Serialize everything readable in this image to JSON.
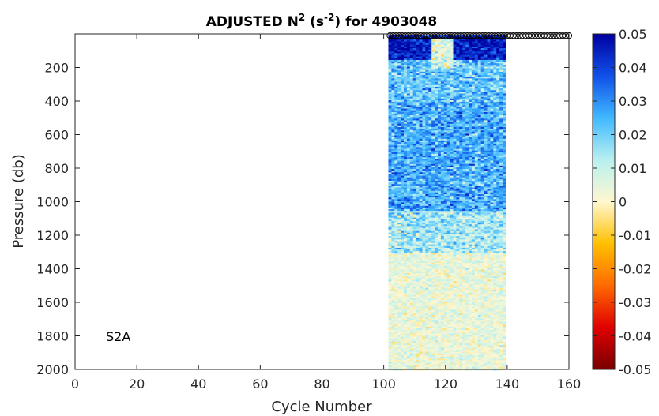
{
  "chart_data": {
    "type": "heatmap",
    "title": {
      "prefix": "ADJUSTED N",
      "sup1": "2",
      "mid": " (s",
      "sup2": "-2",
      "suffix": ") for 4903048"
    },
    "xlabel": "Cycle Number",
    "ylabel": "Pressure (db)",
    "xlim": [
      0,
      160
    ],
    "ylim": [
      2000,
      0
    ],
    "y_reversed": true,
    "xticks": [
      "0",
      "20",
      "40",
      "60",
      "80",
      "100",
      "120",
      "140",
      "160"
    ],
    "xtick_values": [
      0,
      20,
      40,
      60,
      80,
      100,
      120,
      140,
      160
    ],
    "yticks": [
      "200",
      "400",
      "600",
      "800",
      "1000",
      "1200",
      "1400",
      "1600",
      "1800",
      "2000"
    ],
    "ytick_values": [
      200,
      400,
      600,
      800,
      1000,
      1200,
      1400,
      1600,
      1800,
      2000
    ],
    "annotation": "S2A",
    "data_extent": {
      "cycle_range": [
        102,
        139
      ],
      "pressure_range": [
        5,
        2000
      ],
      "marker_cycle_range": [
        102,
        160
      ],
      "marker_pressure": 10
    },
    "colorbar": {
      "clim": [
        -0.05,
        0.05
      ],
      "ticks": [
        "0.05",
        "0.04",
        "0.03",
        "0.02",
        "0.01",
        "0",
        "-0.01",
        "-0.02",
        "-0.03",
        "-0.04",
        "-0.05"
      ],
      "tick_values": [
        0.05,
        0.04,
        0.03,
        0.02,
        0.01,
        0,
        -0.01,
        -0.02,
        -0.03,
        -0.04,
        -0.05
      ],
      "colormap_stops": [
        "#7a0000",
        "#e00000",
        "#ff6a00",
        "#ffc000",
        "#fff7d0",
        "#b8f0f0",
        "#40b8ff",
        "#1050e8",
        "#0000a0"
      ]
    },
    "profile_pattern": [
      {
        "pressure_min": 5,
        "pressure_max": 150,
        "n2_mean": 0.045
      },
      {
        "pressure_min": 150,
        "pressure_max": 400,
        "n2_mean": 0.022
      },
      {
        "pressure_min": 400,
        "pressure_max": 1050,
        "n2_mean": 0.026
      },
      {
        "pressure_min": 1050,
        "pressure_max": 1300,
        "n2_mean": 0.014
      },
      {
        "pressure_min": 1300,
        "pressure_max": 2000,
        "n2_mean": 0.004
      }
    ]
  }
}
